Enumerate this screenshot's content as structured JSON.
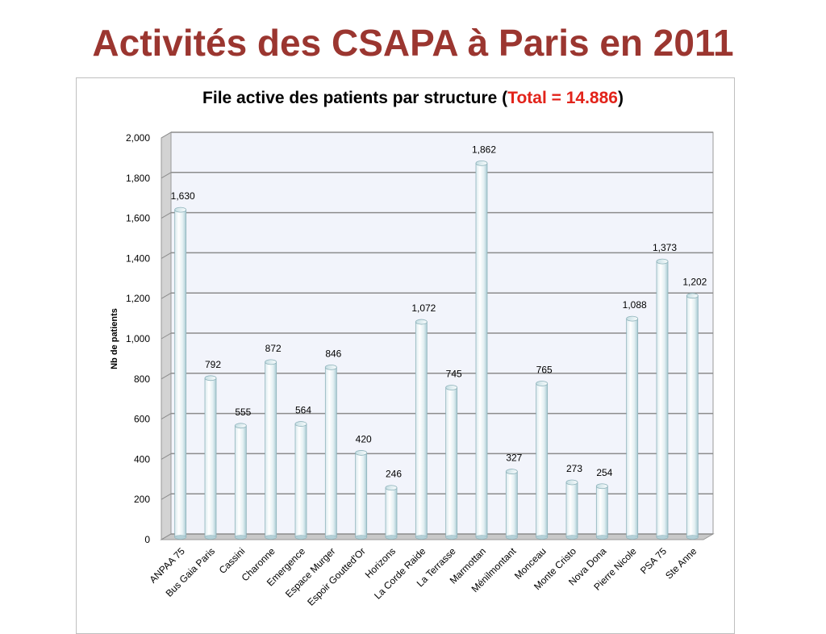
{
  "slide": {
    "title": "Activités des CSAPA à Paris en 2011"
  },
  "chart_data": {
    "type": "bar",
    "title_prefix": "File active des patients par structure (",
    "title_highlight": "Total = 14.886",
    "title_suffix": ")",
    "ylabel": "Nb de patients",
    "xlabel": "",
    "ylim": [
      0,
      2000
    ],
    "y_ticks": [
      0,
      200,
      400,
      600,
      800,
      1000,
      1200,
      1400,
      1600,
      1800,
      2000
    ],
    "y_tick_labels": [
      "0",
      "200",
      "400",
      "600",
      "800",
      "1,000",
      "1,200",
      "1,400",
      "1,600",
      "1,800",
      "2,000"
    ],
    "grid": true,
    "categories": [
      "ANPAA 75",
      "Bus Gaia Paris",
      "Cassini",
      "Charonne",
      "Emergence",
      "Espace Murger",
      "Espoir Goutted'Or",
      "Horizons",
      "La Corde Raide",
      "La Terrasse",
      "Marmottan",
      "Ménilmontant",
      "Monceau",
      "Monte Cristo",
      "Nova Dona",
      "Pierre Nicole",
      "PSA 75",
      "Ste Anne"
    ],
    "values": [
      1630,
      792,
      555,
      872,
      564,
      846,
      420,
      246,
      1072,
      745,
      1862,
      327,
      765,
      273,
      254,
      1088,
      1373,
      1202
    ],
    "value_labels": [
      "1,630",
      "792",
      "555",
      "872",
      "564",
      "846",
      "420",
      "246",
      "1,072",
      "745",
      "1,862",
      "327",
      "765",
      "273",
      "254",
      "1,088",
      "1,373",
      "1,202"
    ],
    "colors": {
      "bar_fill_light": "#f4fafb",
      "bar_fill_dark": "#b9d6dc",
      "bar_stroke": "#8fb3bb",
      "wall": "#f2f4fb",
      "grid": "#8c8c8c"
    }
  }
}
